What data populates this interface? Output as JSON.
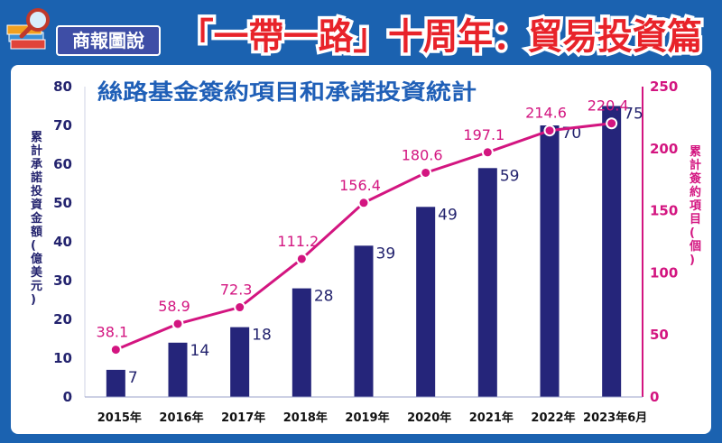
{
  "header": {
    "brand": "商報圖說",
    "title": "「一帶一路」十周年：貿易投資篇"
  },
  "chart_data": {
    "type": "bar+line",
    "title": "絲路基金簽約項目和承諾投資統計",
    "categories": [
      "2015年",
      "2016年",
      "2017年",
      "2018年",
      "2019年",
      "2020年",
      "2021年",
      "2022年",
      "2023年6月"
    ],
    "series": [
      {
        "name": "累計承諾投資金額(億美元)",
        "type": "bar",
        "axis": "left",
        "values": [
          7,
          14,
          18,
          28,
          39,
          49,
          59,
          70,
          75
        ]
      },
      {
        "name": "累計簽約項目(個)",
        "type": "line",
        "axis": "right",
        "values": [
          38.1,
          58.9,
          72.3,
          111.2,
          156.4,
          180.6,
          197.1,
          214.6,
          220.4
        ]
      }
    ],
    "ylabel_left": "累計承諾投資金額(億美元)",
    "ylabel_right": "累計簽約項目(個)",
    "ylim_left": [
      0,
      80
    ],
    "ylim_right": [
      0,
      250
    ],
    "yticks_left": [
      0,
      10,
      20,
      30,
      40,
      50,
      60,
      70,
      80
    ],
    "yticks_right": [
      0,
      50,
      100,
      150,
      200,
      250
    ]
  },
  "colors": {
    "bar": "#25257a",
    "line": "#d31580",
    "frame": "#1b62b0",
    "title": "#1f5fb7",
    "headline": "#e8232a"
  }
}
